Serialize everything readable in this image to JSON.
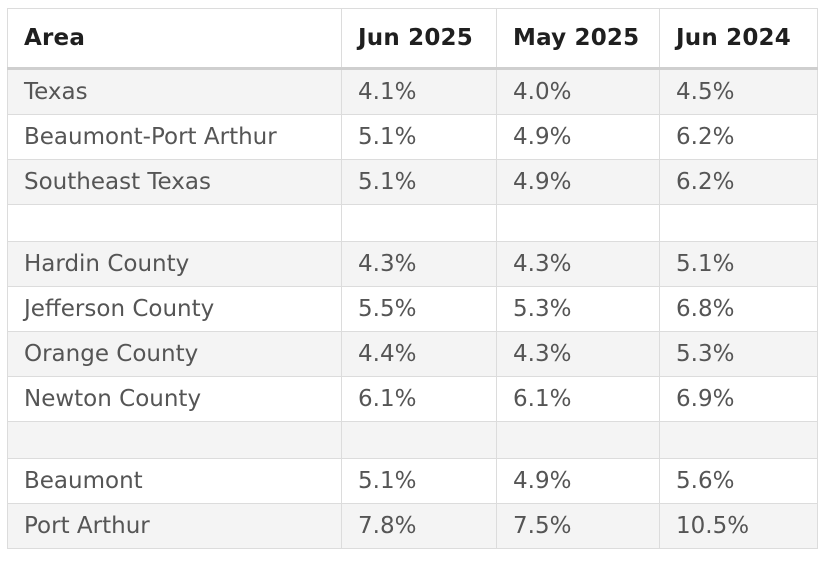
{
  "table": {
    "headers": [
      "Area",
      "Jun 2025",
      "May 2025",
      "Jun 2024"
    ],
    "rows": [
      [
        "Texas",
        "4.1%",
        "4.0%",
        "4.5%"
      ],
      [
        "Beaumont-Port Arthur",
        "5.1%",
        "4.9%",
        "6.2%"
      ],
      [
        "Southeast Texas",
        "5.1%",
        "4.9%",
        "6.2%"
      ],
      [
        "",
        "",
        "",
        ""
      ],
      [
        "Hardin County",
        "4.3%",
        "4.3%",
        "5.1%"
      ],
      [
        "Jefferson County",
        "5.5%",
        "5.3%",
        "6.8%"
      ],
      [
        "Orange County",
        "4.4%",
        "4.3%",
        "5.3%"
      ],
      [
        "Newton County",
        "6.1%",
        "6.1%",
        "6.9%"
      ],
      [
        "",
        "",
        "",
        ""
      ],
      [
        "Beaumont",
        "5.1%",
        "4.9%",
        "5.6%"
      ],
      [
        "Port Arthur",
        "7.8%",
        "7.5%",
        "10.5%"
      ]
    ]
  },
  "colors": {
    "header_text": "#1f1f1f",
    "body_text": "#555555",
    "stripe": "#f4f4f4",
    "border": "#dcdcdc"
  }
}
